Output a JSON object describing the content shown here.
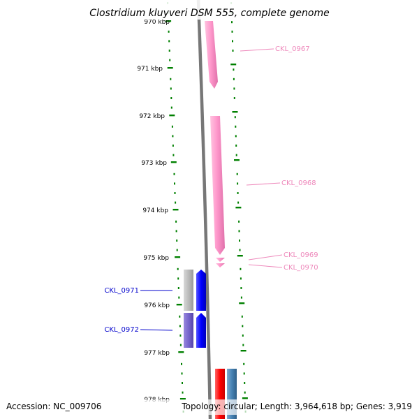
{
  "title": "Clostridium kluyveri DSM 555, complete genome",
  "footer": {
    "accession": "Accession: NC_009706",
    "summary": "Topology: circular; Length: 3,964,618 bp; Genes: 3,919"
  },
  "scale_labels": [
    "970 kbp",
    "971 kbp",
    "972 kbp",
    "973 kbp",
    "974 kbp",
    "975 kbp",
    "976 kbp",
    "977 kbp",
    "978 kbp"
  ],
  "colors": {
    "backbone": "#777777",
    "ruler": "#008000",
    "forward_gene": "#ff99cc",
    "forward_label": "#ee88bb",
    "reverse_label": "#0000cc",
    "reverse_gene": "#0000ff",
    "pseudo_gray": "#bbbbbb",
    "purple_gene": "#7766cc",
    "red_gene": "#ff0000",
    "steel_gene": "#4682b4"
  },
  "genes": [
    {
      "name": "CKL_0967",
      "strand": "forward"
    },
    {
      "name": "CKL_0968",
      "strand": "forward"
    },
    {
      "name": "CKL_0969",
      "strand": "forward"
    },
    {
      "name": "CKL_0970",
      "strand": "forward"
    },
    {
      "name": "CKL_0971",
      "strand": "reverse"
    },
    {
      "name": "CKL_0972",
      "strand": "reverse"
    }
  ]
}
